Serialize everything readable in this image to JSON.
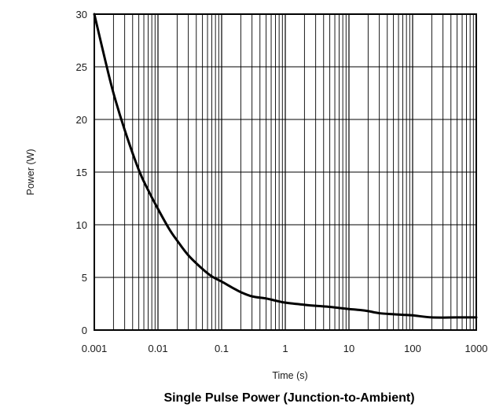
{
  "chart_data": {
    "type": "line",
    "title": "Single Pulse Power (Junction-to-Ambient)",
    "xlabel": "Time (s)",
    "ylabel": "Power  (W)",
    "x_scale": "log",
    "xlim": [
      0.001,
      1000
    ],
    "ylim": [
      0,
      30
    ],
    "x_tick_labels": [
      "0.001",
      "0.01",
      "0.1",
      "1",
      "10",
      "100",
      "1000"
    ],
    "y_tick_labels": [
      "0",
      "5",
      "10",
      "15",
      "20",
      "25",
      "30"
    ],
    "grid": true,
    "legend": "none",
    "line_color": "#000000",
    "series": [
      {
        "x": [
          0.001,
          0.0015,
          0.002,
          0.003,
          0.005,
          0.007,
          0.01,
          0.015,
          0.02,
          0.03,
          0.05,
          0.07,
          0.1,
          0.15,
          0.2,
          0.3,
          0.5,
          0.7,
          1,
          2,
          3,
          5,
          7,
          10,
          15,
          20,
          30,
          50,
          70,
          100,
          200,
          500,
          1000
        ],
        "y": [
          30,
          25.5,
          22.5,
          19,
          15.2,
          13.3,
          11.5,
          9.6,
          8.5,
          7.1,
          5.8,
          5.1,
          4.6,
          4.0,
          3.6,
          3.2,
          3.0,
          2.8,
          2.6,
          2.4,
          2.3,
          2.2,
          2.1,
          2.0,
          1.9,
          1.8,
          1.6,
          1.5,
          1.45,
          1.4,
          1.2,
          1.2,
          1.2
        ]
      }
    ]
  }
}
